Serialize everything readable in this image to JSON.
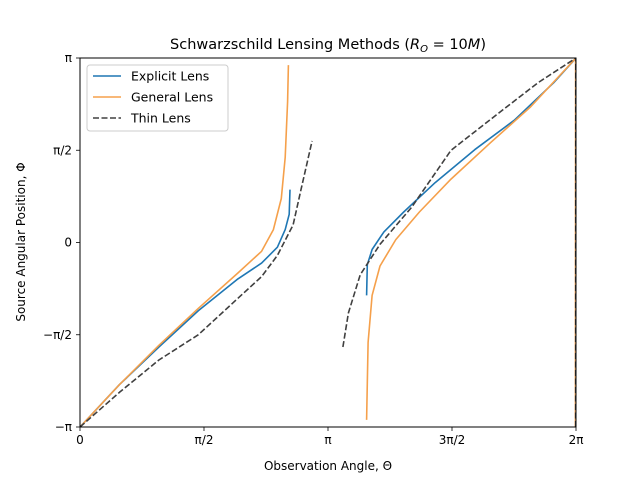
{
  "chart_data": {
    "type": "line",
    "title": "Schwarzschild Lensing Methods (R_O = 10M)",
    "title_parts": {
      "prefix": "Schwarzschild Lensing Methods (",
      "R": "R",
      "sub": "O",
      "rest": " = 10",
      "M": "M",
      ")": ")"
    },
    "xlabel": "Observation Angle, Θ",
    "ylabel": "Source Angular Position, Φ",
    "xlim": [
      0,
      6.2832
    ],
    "ylim": [
      -3.1416,
      3.1416
    ],
    "xticks": [
      {
        "value": 0,
        "label": "0"
      },
      {
        "value": 1.5708,
        "label": "π/2"
      },
      {
        "value": 3.1416,
        "label": "π"
      },
      {
        "value": 4.7124,
        "label": "3π/2"
      },
      {
        "value": 6.2832,
        "label": "2π"
      }
    ],
    "yticks": [
      {
        "value": -3.1416,
        "label": "−π"
      },
      {
        "value": -1.5708,
        "label": "−π/2"
      },
      {
        "value": 0,
        "label": "0"
      },
      {
        "value": 1.5708,
        "label": "π/2"
      },
      {
        "value": 3.1416,
        "label": "π"
      }
    ],
    "legend_position": "top-left",
    "series": [
      {
        "name": "Explicit Lens",
        "color": "#1f77b4",
        "dash": "solid",
        "segments": [
          [
            [
              0,
              -3.1416
            ],
            [
              0.5,
              -2.42
            ],
            [
              1.0,
              -1.78
            ],
            [
              1.5,
              -1.16
            ],
            [
              2.0,
              -0.62
            ],
            [
              2.3,
              -0.35
            ],
            [
              2.5,
              -0.08
            ],
            [
              2.6,
              0.22
            ],
            [
              2.65,
              0.48
            ],
            [
              2.66,
              0.9
            ]
          ],
          [
            [
              3.63,
              -0.9
            ],
            [
              3.64,
              -0.38
            ],
            [
              3.7,
              -0.12
            ],
            [
              3.85,
              0.18
            ],
            [
              4.1,
              0.52
            ],
            [
              4.5,
              1.02
            ],
            [
              5.0,
              1.58
            ],
            [
              5.5,
              2.08
            ],
            [
              6.0,
              2.72
            ],
            [
              6.283,
              3.1416
            ]
          ]
        ]
      },
      {
        "name": "General Lens",
        "color": "#f5a04b",
        "dash": "solid",
        "segments": [
          [
            [
              0,
              -3.1416
            ],
            [
              0.5,
              -2.42
            ],
            [
              1.0,
              -1.75
            ],
            [
              1.5,
              -1.12
            ],
            [
              2.0,
              -0.52
            ],
            [
              2.3,
              -0.15
            ],
            [
              2.45,
              0.22
            ],
            [
              2.55,
              0.75
            ],
            [
              2.6,
              1.45
            ],
            [
              2.63,
              2.4
            ],
            [
              2.64,
              3.02
            ]
          ],
          [
            [
              3.63,
              -3.02
            ],
            [
              3.65,
              -1.7
            ],
            [
              3.7,
              -0.9
            ],
            [
              3.8,
              -0.4
            ],
            [
              4.0,
              0.05
            ],
            [
              4.3,
              0.52
            ],
            [
              4.7,
              1.08
            ],
            [
              5.2,
              1.7
            ],
            [
              5.7,
              2.3
            ],
            [
              6.283,
              3.1416
            ]
          ],
          [
            [
              6.275,
              -3.1416
            ],
            [
              6.278,
              3.1416
            ]
          ]
        ]
      },
      {
        "name": "Thin Lens",
        "color": "#404040",
        "dash": "dashed",
        "segments": [
          [
            [
              0,
              -3.1416
            ],
            [
              0.5,
              -2.55
            ],
            [
              1.0,
              -2.0
            ],
            [
              1.5,
              -1.57
            ],
            [
              2.0,
              -0.95
            ],
            [
              2.3,
              -0.58
            ],
            [
              2.5,
              -0.22
            ],
            [
              2.7,
              0.3
            ],
            [
              2.8,
              0.9
            ],
            [
              2.94,
              1.73
            ]
          ],
          [
            [
              3.33,
              -1.78
            ],
            [
              3.4,
              -1.2
            ],
            [
              3.55,
              -0.55
            ],
            [
              3.8,
              -0.03
            ],
            [
              4.2,
              0.6
            ],
            [
              4.7,
              1.57
            ],
            [
              5.3,
              2.2
            ],
            [
              5.8,
              2.72
            ],
            [
              6.283,
              3.1416
            ]
          ],
          [
            [
              6.28,
              -3.1416
            ],
            [
              6.281,
              3.1416
            ]
          ]
        ]
      }
    ]
  }
}
